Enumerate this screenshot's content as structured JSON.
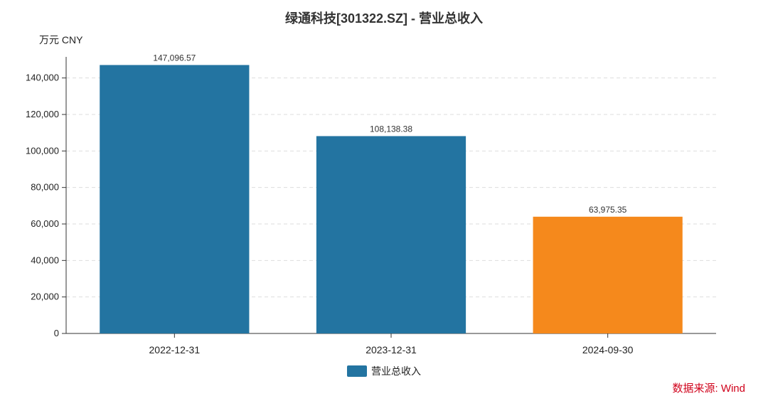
{
  "chart_data": {
    "type": "bar",
    "title": "绿通科技[301322.SZ] - 营业总收入",
    "unit_label": "万元  CNY",
    "categories": [
      "2022-12-31",
      "2023-12-31",
      "2024-09-30"
    ],
    "values": [
      147096.57,
      108138.38,
      63975.35
    ],
    "value_labels": [
      "147,096.57",
      "108,138.38",
      "63,975.35"
    ],
    "bar_colors": [
      "#2374a1",
      "#2374a1",
      "#f5891c"
    ],
    "ylim": [
      0,
      150000
    ],
    "yticks": [
      0,
      20000,
      40000,
      60000,
      80000,
      100000,
      120000,
      140000
    ],
    "ytick_labels": [
      "0",
      "20,000",
      "40,000",
      "60,000",
      "80,000",
      "100,000",
      "120,000",
      "140,000"
    ],
    "grid": true,
    "legend": {
      "position": "bottom",
      "entries": [
        {
          "name": "营业总收入",
          "color": "#2374a1"
        }
      ]
    },
    "source": "数据来源: Wind"
  }
}
